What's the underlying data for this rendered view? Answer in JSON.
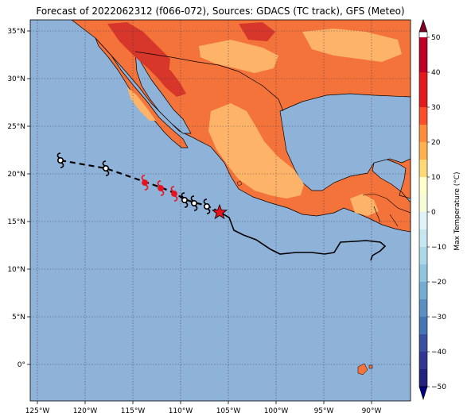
{
  "title": "Forecast of 2022062312 (f066-072), Sources: GDACS (TC track), GFS (Meteo)",
  "map": {
    "lon_ticks": [
      "125°W",
      "120°W",
      "115°W",
      "110°W",
      "105°W",
      "100°W",
      "95°W",
      "90°W"
    ],
    "lat_ticks": [
      "35°N",
      "30°N",
      "25°N",
      "20°N",
      "15°N",
      "10°N",
      "5°N",
      "0°"
    ],
    "colors": {
      "ocean": "#8fb2d9",
      "land_20_30": "#f4733a",
      "land_10_20": "#fdb468",
      "land_30_40": "#d7362a",
      "land_0_10": "#fee9a8",
      "track_observed": "#000000",
      "track_forecast": "#e8121c",
      "star": "#e8121c"
    }
  },
  "track": {
    "observed_symbols": 6,
    "forecast_symbols": 3,
    "current_position_marker": "star-icon"
  },
  "colorbar": {
    "label": "Max Temperature (°C)",
    "ticks": [
      "50",
      "40",
      "30",
      "20",
      "10",
      "0",
      "−10",
      "−20",
      "−30",
      "−40",
      "−50"
    ],
    "colors": [
      "#7f0026",
      "#bd0026",
      "#e31a1c",
      "#fc4e2a",
      "#fd8d3c",
      "#feb24c",
      "#fed976",
      "#ffffcc",
      "#e0f3f8",
      "#abd9e9",
      "#74add1",
      "#4575b4",
      "#313695",
      "#22227f"
    ]
  }
}
